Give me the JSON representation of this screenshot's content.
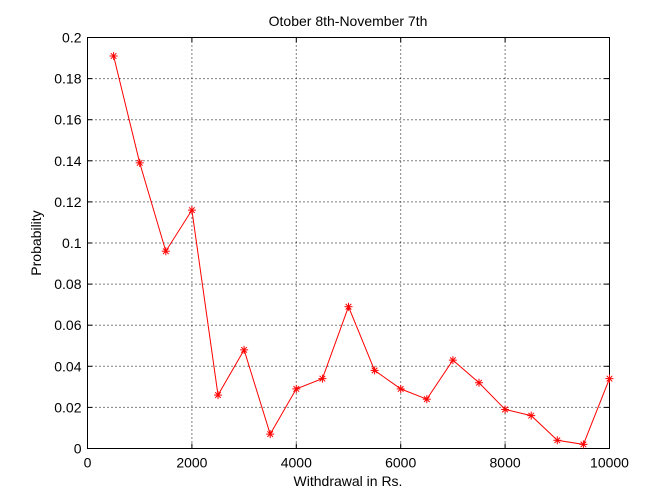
{
  "chart_data": {
    "type": "line",
    "title": "Otober 8th-November 7th",
    "xlabel": "Withdrawal in Rs.",
    "ylabel": "Probability",
    "xlim": [
      0,
      10000
    ],
    "ylim": [
      0,
      0.2
    ],
    "xticks": [
      0,
      2000,
      4000,
      6000,
      8000,
      10000
    ],
    "xtick_labels": [
      "0",
      "2000",
      "4000",
      "6000",
      "8000",
      "10000"
    ],
    "yticks": [
      0,
      0.02,
      0.04,
      0.06,
      0.08,
      0.1,
      0.12,
      0.14,
      0.16,
      0.18,
      0.2
    ],
    "ytick_labels": [
      "0",
      "0.02",
      "0.04",
      "0.06",
      "0.08",
      "0.1",
      "0.12",
      "0.14",
      "0.16",
      "0.18",
      "0.2"
    ],
    "grid": true,
    "grid_style": "dotted",
    "marker": "asterisk",
    "series": [
      {
        "color": "#ff0000",
        "x": [
          500,
          1000,
          1500,
          2000,
          2500,
          3000,
          3500,
          4000,
          4500,
          5000,
          5500,
          6000,
          6500,
          7000,
          7500,
          8000,
          8500,
          9000,
          9500,
          10000
        ],
        "y": [
          0.191,
          0.139,
          0.096,
          0.116,
          0.026,
          0.048,
          0.007,
          0.029,
          0.034,
          0.069,
          0.038,
          0.029,
          0.024,
          0.043,
          0.032,
          0.019,
          0.016,
          0.004,
          0.002,
          0.034
        ]
      }
    ]
  }
}
